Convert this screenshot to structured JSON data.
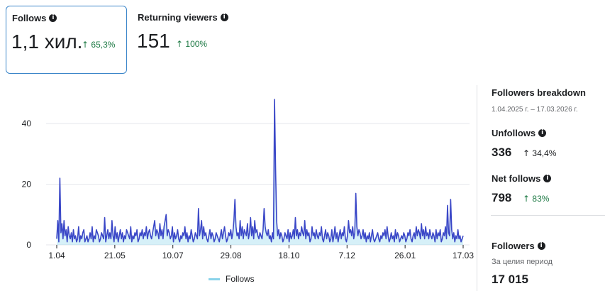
{
  "metrics": {
    "follows": {
      "title": "Follows",
      "value": "1,1 хил.",
      "delta": "65,3%"
    },
    "returning": {
      "title": "Returning viewers",
      "value": "151",
      "delta": "100%"
    }
  },
  "icons": {
    "info": "info-icon",
    "arrow": "↑"
  },
  "colors": {
    "line": "#3a47c7",
    "area": "#8ad3ea",
    "positive": "#1e7a45",
    "selected_border": "#3a85c9"
  },
  "side": {
    "breakdown_title": "Followers breakdown",
    "date_range": "1.04.2025 г. – 17.03.2026 г.",
    "unfollows": {
      "label": "Unfollows",
      "value": "336",
      "delta": "34,4%"
    },
    "net": {
      "label": "Net follows",
      "value": "798",
      "delta": "83%"
    },
    "followers": {
      "label": "Followers",
      "sub": "За целия период",
      "value": "17 015"
    }
  },
  "chart_data": {
    "type": "line",
    "x_tick_labels": [
      "1.04",
      "21.05",
      "10.07",
      "29.08",
      "18.10",
      "7.12",
      "26.01",
      "17.03"
    ],
    "y_ticks": [
      0,
      20,
      40
    ],
    "ylim": [
      0,
      48
    ],
    "grid": true,
    "legend": "bottom",
    "series": [
      {
        "name": "Follows",
        "values": [
          2,
          8,
          1,
          22,
          4,
          7,
          2,
          8,
          3,
          5,
          1,
          6,
          3,
          2,
          4,
          1,
          5,
          2,
          3,
          1,
          2,
          6,
          1,
          3,
          2,
          4,
          5,
          1,
          2,
          3,
          1,
          2,
          4,
          2,
          6,
          1,
          3,
          2,
          5,
          4,
          3,
          1,
          2,
          4,
          3,
          2,
          9,
          1,
          3,
          5,
          2,
          4,
          2,
          8,
          3,
          1,
          6,
          2,
          4,
          1,
          3,
          5,
          2,
          4,
          1,
          3,
          2,
          5,
          4,
          3,
          2,
          6,
          1,
          3,
          2,
          4,
          3,
          5,
          1,
          2,
          4,
          3,
          5,
          2,
          4,
          3,
          6,
          2,
          4,
          5,
          3,
          2,
          4,
          6,
          8,
          3,
          5,
          4,
          2,
          7,
          3,
          5,
          2,
          6,
          8,
          10,
          3,
          5,
          4,
          2,
          3,
          6,
          1,
          4,
          2,
          3,
          5,
          2,
          1,
          3,
          2,
          4,
          3,
          6,
          2,
          4,
          1,
          3,
          2,
          5,
          3,
          1,
          2,
          4,
          3,
          2,
          12,
          3,
          5,
          8,
          2,
          6,
          3,
          4,
          2,
          1,
          3,
          5,
          2,
          4,
          3,
          1,
          2,
          4,
          3,
          2,
          1,
          3,
          5,
          2,
          4,
          6,
          3,
          1,
          2,
          4,
          3,
          5,
          2,
          4,
          8,
          15,
          6,
          3,
          4,
          2,
          8,
          3,
          6,
          2,
          5,
          4,
          3,
          7,
          2,
          4,
          9,
          3,
          6,
          2,
          8,
          4,
          5,
          3,
          2,
          4,
          3,
          2,
          5,
          12,
          6,
          4,
          3,
          5,
          2,
          3,
          1,
          4,
          2,
          48,
          25,
          8,
          3,
          5,
          2,
          4,
          3,
          1,
          2,
          4,
          3,
          2,
          5,
          1,
          4,
          2,
          3,
          5,
          2,
          9,
          3,
          5,
          2,
          4,
          3,
          6,
          4,
          3,
          8,
          2,
          5,
          3,
          4,
          1,
          2,
          6,
          3,
          4,
          2,
          5,
          3,
          2,
          4,
          3,
          6,
          2,
          1,
          3,
          5,
          2,
          4,
          3,
          1,
          2,
          5,
          1,
          3,
          6,
          2,
          4,
          1,
          3,
          5,
          2,
          4,
          3,
          6,
          2,
          1,
          3,
          8,
          4,
          5,
          3,
          6,
          2,
          4,
          17,
          6,
          3,
          5,
          4,
          2,
          3,
          5,
          2,
          4,
          1,
          3,
          2,
          4,
          1,
          3,
          5,
          2,
          1,
          2,
          3,
          4,
          2,
          1,
          3,
          2,
          4,
          3,
          5,
          2,
          6,
          3,
          1,
          2,
          4,
          2,
          3,
          1,
          5,
          2,
          4,
          3,
          1,
          2,
          3,
          2,
          4,
          3,
          1,
          2,
          4,
          3,
          5,
          2,
          1,
          3,
          4,
          2,
          6,
          3,
          5,
          4,
          2,
          7,
          3,
          5,
          2,
          6,
          3,
          4,
          2,
          5,
          3,
          2,
          4,
          3,
          1,
          5,
          2,
          4,
          3,
          5,
          1,
          2,
          4,
          3,
          6,
          2,
          13,
          4,
          3,
          15,
          5,
          2,
          4,
          1,
          3,
          2,
          5,
          2,
          3,
          1,
          2,
          3
        ]
      }
    ]
  }
}
